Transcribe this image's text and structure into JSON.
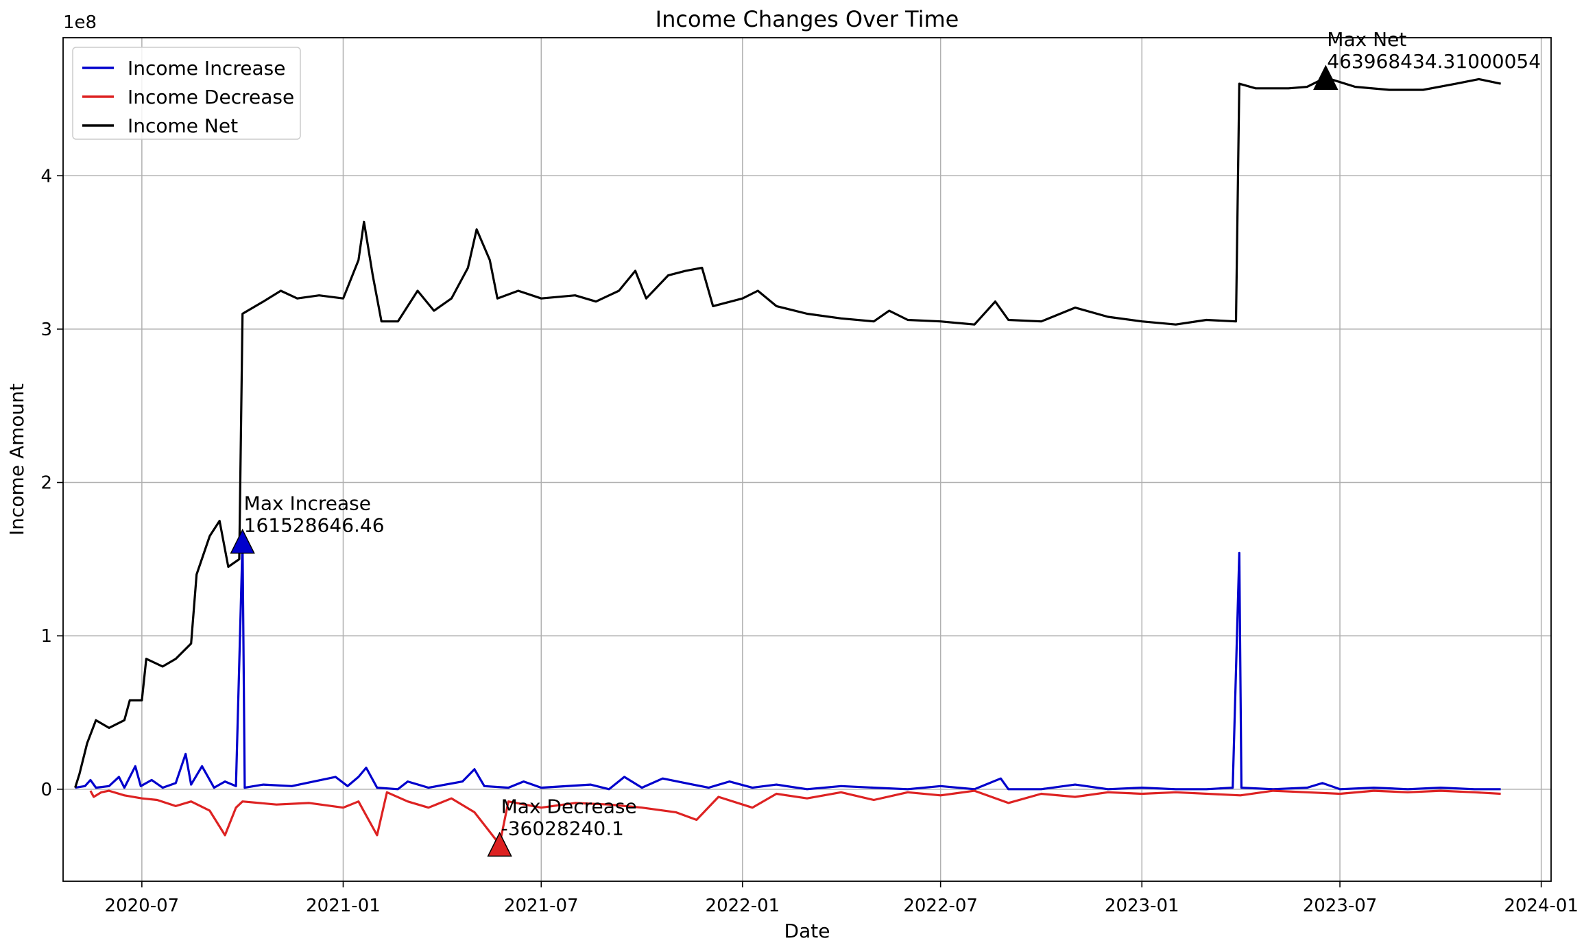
{
  "chart_data": {
    "type": "line",
    "title": "Income Changes Over Time",
    "xlabel": "Date",
    "ylabel": "Income Amount",
    "y_scale_label": "1e8",
    "grid": true,
    "legend_position": "upper-left",
    "x_ticks": [
      "2020-07",
      "2021-01",
      "2021-07",
      "2022-01",
      "2022-07",
      "2023-01",
      "2023-07",
      "2024-01"
    ],
    "y_ticks": [
      0,
      100000000,
      200000000,
      300000000,
      400000000
    ],
    "y_tick_labels": [
      "0",
      "1",
      "2",
      "3",
      "4"
    ],
    "xlim": [
      "2020-04-20",
      "2024-01-10"
    ],
    "ylim": [
      -60000000,
      490000000
    ],
    "series": [
      {
        "name": "Income Increase",
        "color": "#0000cc",
        "points": [
          [
            "2020-05-01",
            1000000
          ],
          [
            "2020-05-10",
            2000000
          ],
          [
            "2020-05-15",
            6000000
          ],
          [
            "2020-05-20",
            1000000
          ],
          [
            "2020-06-01",
            2000000
          ],
          [
            "2020-06-10",
            8000000
          ],
          [
            "2020-06-15",
            1000000
          ],
          [
            "2020-06-25",
            15000000
          ],
          [
            "2020-06-30",
            2000000
          ],
          [
            "2020-07-10",
            6000000
          ],
          [
            "2020-07-20",
            1000000
          ],
          [
            "2020-08-01",
            4000000
          ],
          [
            "2020-08-10",
            23000000
          ],
          [
            "2020-08-15",
            3000000
          ],
          [
            "2020-08-25",
            15000000
          ],
          [
            "2020-09-05",
            1000000
          ],
          [
            "2020-09-15",
            5000000
          ],
          [
            "2020-09-25",
            2000000
          ],
          [
            "2020-10-01",
            161528646.46
          ],
          [
            "2020-10-03",
            1000000
          ],
          [
            "2020-10-20",
            3000000
          ],
          [
            "2020-11-15",
            2000000
          ],
          [
            "2020-12-25",
            8000000
          ],
          [
            "2021-01-05",
            2000000
          ],
          [
            "2021-01-15",
            8000000
          ],
          [
            "2021-01-22",
            14000000
          ],
          [
            "2021-02-01",
            1000000
          ],
          [
            "2021-02-20",
            0
          ],
          [
            "2021-03-01",
            5000000
          ],
          [
            "2021-03-20",
            1000000
          ],
          [
            "2021-04-20",
            5000000
          ],
          [
            "2021-05-01",
            13000000
          ],
          [
            "2021-05-10",
            2000000
          ],
          [
            "2021-06-01",
            1000000
          ],
          [
            "2021-06-15",
            5000000
          ],
          [
            "2021-07-01",
            1000000
          ],
          [
            "2021-08-15",
            3000000
          ],
          [
            "2021-09-01",
            0
          ],
          [
            "2021-09-15",
            8000000
          ],
          [
            "2021-10-01",
            1000000
          ],
          [
            "2021-10-20",
            7000000
          ],
          [
            "2021-11-10",
            4000000
          ],
          [
            "2021-12-01",
            1000000
          ],
          [
            "2021-12-20",
            5000000
          ],
          [
            "2022-01-10",
            1000000
          ],
          [
            "2022-02-01",
            3000000
          ],
          [
            "2022-03-01",
            0
          ],
          [
            "2022-04-01",
            2000000
          ],
          [
            "2022-05-01",
            1000000
          ],
          [
            "2022-06-01",
            0
          ],
          [
            "2022-07-01",
            2000000
          ],
          [
            "2022-08-01",
            0
          ],
          [
            "2022-08-25",
            7000000
          ],
          [
            "2022-09-01",
            0
          ],
          [
            "2022-10-01",
            0
          ],
          [
            "2022-11-01",
            3000000
          ],
          [
            "2022-12-01",
            0
          ],
          [
            "2023-01-01",
            1000000
          ],
          [
            "2023-02-01",
            0
          ],
          [
            "2023-03-01",
            0
          ],
          [
            "2023-03-25",
            1000000
          ],
          [
            "2023-03-31",
            154000000
          ],
          [
            "2023-04-02",
            1000000
          ],
          [
            "2023-05-01",
            0
          ],
          [
            "2023-06-01",
            1000000
          ],
          [
            "2023-06-15",
            4000000
          ],
          [
            "2023-07-01",
            0
          ],
          [
            "2023-08-01",
            1000000
          ],
          [
            "2023-09-01",
            0
          ],
          [
            "2023-10-01",
            1000000
          ],
          [
            "2023-11-01",
            0
          ],
          [
            "2023-11-25",
            0
          ]
        ]
      },
      {
        "name": "Income Decrease",
        "color": "#dd2222",
        "points": [
          [
            "2020-05-15",
            -1000000
          ],
          [
            "2020-05-18",
            -5000000
          ],
          [
            "2020-05-25",
            -2000000
          ],
          [
            "2020-06-01",
            -1000000
          ],
          [
            "2020-06-15",
            -4000000
          ],
          [
            "2020-07-01",
            -6000000
          ],
          [
            "2020-07-15",
            -7000000
          ],
          [
            "2020-08-01",
            -11000000
          ],
          [
            "2020-08-15",
            -8000000
          ],
          [
            "2020-09-01",
            -14000000
          ],
          [
            "2020-09-15",
            -30000000
          ],
          [
            "2020-09-25",
            -12000000
          ],
          [
            "2020-10-01",
            -8000000
          ],
          [
            "2020-11-01",
            -10000000
          ],
          [
            "2020-12-01",
            -9000000
          ],
          [
            "2021-01-01",
            -12000000
          ],
          [
            "2021-01-15",
            -8000000
          ],
          [
            "2021-02-01",
            -30000000
          ],
          [
            "2021-02-10",
            -2000000
          ],
          [
            "2021-03-01",
            -8000000
          ],
          [
            "2021-03-20",
            -12000000
          ],
          [
            "2021-04-10",
            -6000000
          ],
          [
            "2021-05-01",
            -15000000
          ],
          [
            "2021-05-24",
            -36028240.1
          ],
          [
            "2021-06-01",
            -8000000
          ],
          [
            "2021-07-01",
            -12000000
          ],
          [
            "2021-08-01",
            -9000000
          ],
          [
            "2021-09-01",
            -10000000
          ],
          [
            "2021-10-01",
            -12000000
          ],
          [
            "2021-11-01",
            -15000000
          ],
          [
            "2021-11-20",
            -20000000
          ],
          [
            "2021-12-10",
            -5000000
          ],
          [
            "2022-01-10",
            -12000000
          ],
          [
            "2022-02-01",
            -3000000
          ],
          [
            "2022-03-01",
            -6000000
          ],
          [
            "2022-04-01",
            -2000000
          ],
          [
            "2022-05-01",
            -7000000
          ],
          [
            "2022-06-01",
            -2000000
          ],
          [
            "2022-07-01",
            -4000000
          ],
          [
            "2022-08-01",
            -1000000
          ],
          [
            "2022-09-01",
            -9000000
          ],
          [
            "2022-10-01",
            -3000000
          ],
          [
            "2022-11-01",
            -5000000
          ],
          [
            "2022-12-01",
            -2000000
          ],
          [
            "2023-01-01",
            -3000000
          ],
          [
            "2023-02-01",
            -2000000
          ],
          [
            "2023-04-01",
            -4000000
          ],
          [
            "2023-05-01",
            -1000000
          ],
          [
            "2023-06-01",
            -2000000
          ],
          [
            "2023-07-01",
            -3000000
          ],
          [
            "2023-08-01",
            -1000000
          ],
          [
            "2023-09-01",
            -2000000
          ],
          [
            "2023-10-01",
            -1000000
          ],
          [
            "2023-11-01",
            -2000000
          ],
          [
            "2023-11-25",
            -3000000
          ]
        ]
      },
      {
        "name": "Income Net",
        "color": "#000000",
        "points": [
          [
            "2020-05-01",
            1000000
          ],
          [
            "2020-05-05",
            10000000
          ],
          [
            "2020-05-12",
            30000000
          ],
          [
            "2020-05-20",
            45000000
          ],
          [
            "2020-06-01",
            40000000
          ],
          [
            "2020-06-15",
            45000000
          ],
          [
            "2020-06-20",
            58000000
          ],
          [
            "2020-07-01",
            58000000
          ],
          [
            "2020-07-05",
            85000000
          ],
          [
            "2020-07-20",
            80000000
          ],
          [
            "2020-08-01",
            85000000
          ],
          [
            "2020-08-15",
            95000000
          ],
          [
            "2020-08-20",
            140000000
          ],
          [
            "2020-09-01",
            165000000
          ],
          [
            "2020-09-10",
            175000000
          ],
          [
            "2020-09-18",
            145000000
          ],
          [
            "2020-09-28",
            150000000
          ],
          [
            "2020-10-01",
            310000000
          ],
          [
            "2020-10-20",
            318000000
          ],
          [
            "2020-11-05",
            325000000
          ],
          [
            "2020-11-20",
            320000000
          ],
          [
            "2020-12-10",
            322000000
          ],
          [
            "2021-01-01",
            320000000
          ],
          [
            "2021-01-15",
            345000000
          ],
          [
            "2021-01-20",
            370000000
          ],
          [
            "2021-01-28",
            335000000
          ],
          [
            "2021-02-05",
            305000000
          ],
          [
            "2021-02-20",
            305000000
          ],
          [
            "2021-03-10",
            325000000
          ],
          [
            "2021-03-25",
            312000000
          ],
          [
            "2021-04-10",
            320000000
          ],
          [
            "2021-04-25",
            340000000
          ],
          [
            "2021-05-03",
            365000000
          ],
          [
            "2021-05-15",
            345000000
          ],
          [
            "2021-05-22",
            320000000
          ],
          [
            "2021-06-10",
            325000000
          ],
          [
            "2021-07-01",
            320000000
          ],
          [
            "2021-08-01",
            322000000
          ],
          [
            "2021-08-20",
            318000000
          ],
          [
            "2021-09-10",
            325000000
          ],
          [
            "2021-09-25",
            338000000
          ],
          [
            "2021-10-05",
            320000000
          ],
          [
            "2021-10-25",
            335000000
          ],
          [
            "2021-11-10",
            338000000
          ],
          [
            "2021-11-25",
            340000000
          ],
          [
            "2021-12-05",
            315000000
          ],
          [
            "2022-01-01",
            320000000
          ],
          [
            "2022-01-15",
            325000000
          ],
          [
            "2022-02-01",
            315000000
          ],
          [
            "2022-03-01",
            310000000
          ],
          [
            "2022-04-01",
            307000000
          ],
          [
            "2022-05-01",
            305000000
          ],
          [
            "2022-05-15",
            312000000
          ],
          [
            "2022-06-01",
            306000000
          ],
          [
            "2022-07-01",
            305000000
          ],
          [
            "2022-08-01",
            303000000
          ],
          [
            "2022-08-20",
            318000000
          ],
          [
            "2022-09-01",
            306000000
          ],
          [
            "2022-10-01",
            305000000
          ],
          [
            "2022-11-01",
            314000000
          ],
          [
            "2022-12-01",
            308000000
          ],
          [
            "2023-01-01",
            305000000
          ],
          [
            "2023-02-01",
            303000000
          ],
          [
            "2023-03-01",
            306000000
          ],
          [
            "2023-03-28",
            305000000
          ],
          [
            "2023-03-31",
            460000000
          ],
          [
            "2023-04-15",
            457000000
          ],
          [
            "2023-05-15",
            457000000
          ],
          [
            "2023-06-01",
            458000000
          ],
          [
            "2023-06-18",
            463968434.31000054
          ],
          [
            "2023-07-15",
            458000000
          ],
          [
            "2023-08-15",
            456000000
          ],
          [
            "2023-09-15",
            456000000
          ],
          [
            "2023-10-15",
            460000000
          ],
          [
            "2023-11-05",
            463000000
          ],
          [
            "2023-11-25",
            460000000
          ]
        ]
      }
    ],
    "annotations": [
      {
        "label": "Max Increase",
        "value_text": "161528646.46",
        "x": "2020-10-01",
        "y": 161528646.46,
        "color": "#0000cc"
      },
      {
        "label": "Max Decrease",
        "value_text": "-36028240.1",
        "x": "2021-05-24",
        "y": -36028240.1,
        "color": "#dd2222"
      },
      {
        "label": "Max Net",
        "value_text": "463968434.31000054",
        "x": "2023-06-18",
        "y": 463968434.31000054,
        "color": "#000000"
      }
    ]
  }
}
